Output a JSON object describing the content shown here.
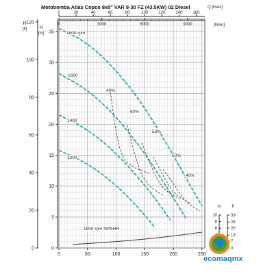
{
  "chart_data": {
    "type": "line",
    "title": "Motobomba Atlas Copco 8x8\" VAR 8-30 FZ (43.5KW) 02 Diesel",
    "flow_axis_m3h": {
      "label": "",
      "ticks": [
        0,
        50,
        100,
        150,
        200,
        250
      ],
      "lim": [
        0,
        255
      ]
    },
    "flow_axis_lmin": {
      "label": "[l/min]",
      "ticks": [
        0,
        3000,
        6000,
        9000
      ],
      "lim": [
        0,
        10200
      ]
    },
    "flow_axis_lsec": {
      "label": "Q [l/sec]",
      "ticks": [
        0,
        20,
        40,
        60,
        80,
        100,
        120,
        140,
        160
      ],
      "lim": [
        0,
        170
      ]
    },
    "head_axis_m": {
      "label": "H [m]",
      "ticks": [
        0,
        5,
        10,
        15,
        20,
        25,
        30,
        35
      ],
      "lim": [
        0,
        37
      ]
    },
    "head_axis_ft": {
      "label": "H [ft]",
      "ticks": [
        0,
        20,
        40,
        60,
        80,
        100,
        120
      ],
      "lim": [
        0,
        121.4
      ]
    },
    "npshr_axis_m": {
      "label": "m",
      "ticks": [
        0,
        2,
        4,
        6,
        8,
        10
      ],
      "lim": [
        0,
        10
      ]
    },
    "npshr_axis_ft": {
      "label": "ft",
      "ticks": [
        0,
        7,
        13,
        20,
        26,
        33
      ],
      "lim": [
        0,
        33
      ]
    },
    "series": [
      {
        "name": "1800 rpm",
        "x": [
          0,
          50,
          100,
          150,
          200,
          230,
          250
        ],
        "y": [
          35.5,
          33.2,
          28.8,
          22.8,
          15.0,
          10.0,
          6.8
        ]
      },
      {
        "name": "1600",
        "x": [
          0,
          50,
          100,
          150,
          200,
          222
        ],
        "y": [
          28.2,
          25.6,
          21.3,
          15.4,
          8.1,
          4.8
        ]
      },
      {
        "name": "1400",
        "x": [
          0,
          50,
          100,
          150,
          180,
          195
        ],
        "y": [
          21.5,
          19.2,
          15.4,
          10.2,
          6.5,
          4.5
        ]
      },
      {
        "name": "1200",
        "x": [
          0,
          50,
          100,
          140,
          168
        ],
        "y": [
          15.8,
          13.7,
          10.2,
          6.4,
          3.3
        ]
      },
      {
        "name": "1800 rpm NPSHR",
        "x": [
          25,
          75,
          125,
          175,
          225,
          250
        ],
        "y": [
          1.1,
          1.6,
          2.3,
          3.1,
          4.2,
          4.8
        ],
        "axis": "npshr"
      }
    ],
    "efficiency_lines": [
      {
        "label": "40%",
        "x": [
          160,
          114,
          100,
          90
        ],
        "y": [
          12.0,
          13.6,
          18.3,
          25.2
        ]
      },
      {
        "label": "60%",
        "x": [
          184,
          152,
          135,
          120
        ],
        "y": [
          8.4,
          10.3,
          14.1,
          19.8
        ]
      },
      {
        "label": "53%",
        "x": [
          210,
          180,
          160,
          145
        ],
        "y": [
          8.0,
          9.6,
          13.4,
          17.0
        ]
      },
      {
        "label": "50%",
        "x": [
          230,
          200,
          180,
          165
        ],
        "y": [
          7.2,
          8.8,
          12.1,
          14.7
        ]
      },
      {
        "label": "40%",
        "x": [
          246,
          220,
          200,
          182
        ],
        "y": [
          6.0,
          7.5,
          10.5,
          12.7
        ]
      }
    ],
    "grid": true,
    "legend": "none"
  },
  "logo": {
    "text": "ecomaqmx"
  },
  "colors": {
    "curve": "#2aa9b0",
    "npshr": "#333333",
    "grid": "#bbbbbb",
    "axis": "#222222",
    "logo_green": "#3d9e3a",
    "logo_orange": "#e8891e",
    "logo_blue": "#1f7fbf"
  }
}
